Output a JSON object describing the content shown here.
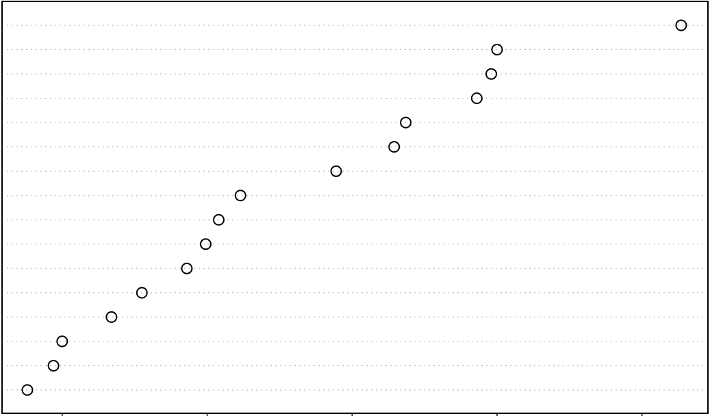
{
  "chart_data": {
    "type": "dot",
    "categories": [
      null,
      null,
      null,
      null,
      null,
      null,
      null,
      null,
      null,
      null,
      null,
      null,
      null,
      null,
      null,
      null
    ],
    "values": [
      0.76,
      0.94,
      1.0,
      1.34,
      1.55,
      1.86,
      1.99,
      2.08,
      2.23,
      2.89,
      3.29,
      3.37,
      3.86,
      3.96,
      4.0,
      5.27
    ],
    "xlim": [
      0.59,
      5.45
    ],
    "xticks": [
      1,
      2,
      3,
      4,
      5
    ],
    "grid": true,
    "color": "#000000"
  }
}
